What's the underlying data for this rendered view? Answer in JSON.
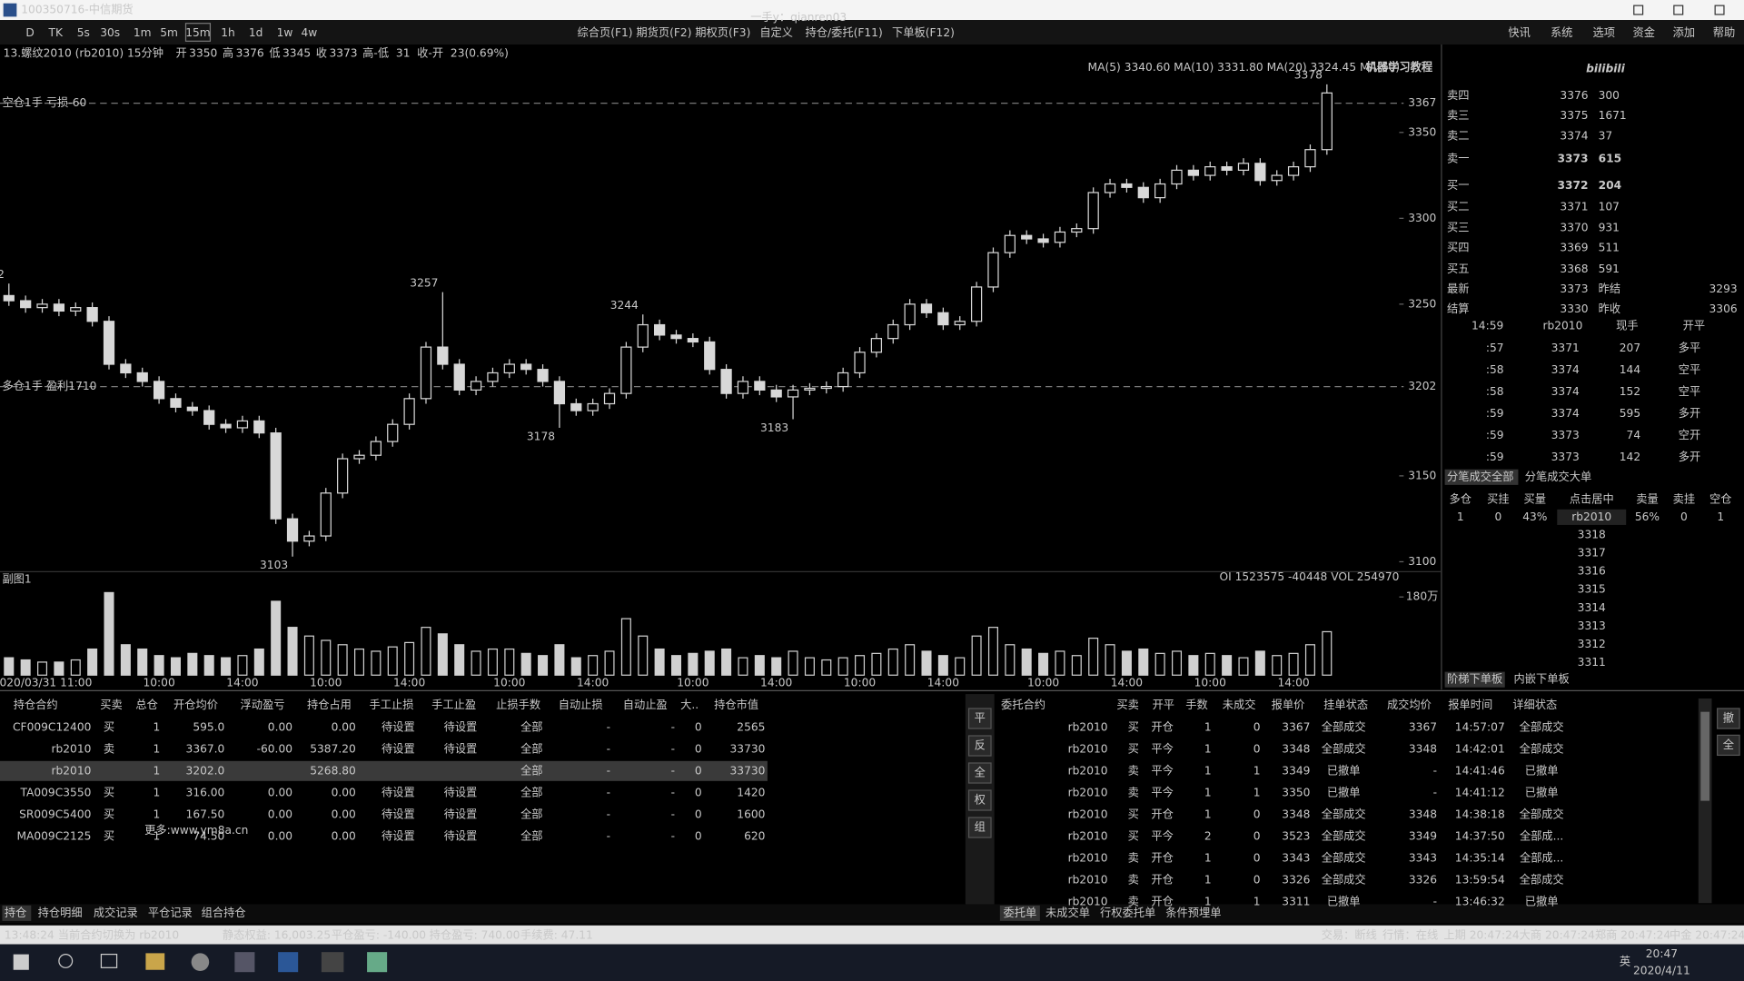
{
  "window": {
    "title": "100350716-中信期货",
    "watermark": "一手y：qianren03"
  },
  "toolbar": {
    "periods": [
      "D",
      "TK",
      "5s",
      "30s",
      "1m",
      "5m",
      "15m",
      "1h",
      "1d",
      "1w",
      "4w"
    ],
    "menus": [
      "综合页(F1)",
      "期货页(F2)",
      "期权页(F3)",
      "自定义",
      "持仓/委托(F11)",
      "下单板(F12)"
    ],
    "right_menus": [
      "快讯",
      "系统",
      "选项",
      "资金",
      "添加",
      "帮助"
    ]
  },
  "chart": {
    "symbol": "13.螺纹2010 (rb2010) 15分钟",
    "fields": [
      {
        "label": "开",
        "value": "3350"
      },
      {
        "label": "高",
        "value": "3376"
      },
      {
        "label": "低",
        "value": "3345"
      },
      {
        "label": "收",
        "value": "3373"
      },
      {
        "label": "高-低",
        "value": "31"
      },
      {
        "label": "收-开",
        "value": "23(0.69%)"
      }
    ],
    "ma_legend": "MA(5) 3340.60  MA(10) 3331.80  MA(20) 3324.45  MA(60)",
    "ylim": [
      3095.5,
      3391.5
    ],
    "yticks": [
      3350,
      3300,
      3250,
      3150,
      3100
    ],
    "position_lines": [
      {
        "label": "空仓1手 亏损-60",
        "price": 3367
      },
      {
        "label": "多仓1手 盈利1710",
        "price": 3202
      }
    ],
    "categories": [
      null,
      null,
      "2020/03/31 11:00",
      null,
      null,
      null,
      null,
      null,
      null,
      "10:00",
      null,
      null,
      null,
      null,
      "14:00",
      null,
      null,
      null,
      null,
      "10:00",
      null,
      null,
      null,
      null,
      "14:00",
      null,
      null,
      null,
      null,
      null,
      "10:00",
      null,
      null,
      null,
      null,
      "14:00",
      null,
      null,
      null,
      null,
      null,
      "10:00",
      null,
      null,
      null,
      null,
      "14:00",
      null,
      null,
      null,
      null,
      "10:00",
      null,
      null,
      null,
      null,
      "14:00",
      null,
      null,
      null,
      null,
      null,
      "10:00",
      null,
      null,
      null,
      null,
      "14:00",
      null,
      null,
      null,
      null,
      "10:00",
      null,
      null,
      null,
      null,
      "14:00",
      null,
      null
    ],
    "candles": {
      "open": [
        3255,
        3252,
        3248,
        3250,
        3246,
        3248,
        3240,
        3215,
        3210,
        3205,
        3195,
        3190,
        3188,
        3180,
        3178,
        3182,
        3175,
        3125,
        3112,
        3115,
        3140,
        3160,
        3162,
        3170,
        3180,
        3195,
        3225,
        3215,
        3200,
        3205,
        3210,
        3215,
        3212,
        3205,
        3192,
        3188,
        3192,
        3198,
        3225,
        3238,
        3232,
        3230,
        3228,
        3212,
        3198,
        3205,
        3200,
        3196,
        3200,
        3201,
        3202,
        3210,
        3222,
        3230,
        3238,
        3250,
        3245,
        3238,
        3240,
        3260,
        3280,
        3290,
        3288,
        3286,
        3292,
        3294,
        3315,
        3320,
        3318,
        3312,
        3320,
        3328,
        3325,
        3330,
        3328,
        3332,
        3322,
        3325,
        3330,
        3340
      ],
      "high": [
        3262,
        3255,
        3253,
        3253,
        3251,
        3251,
        3243,
        3218,
        3213,
        3208,
        3198,
        3193,
        3191,
        3183,
        3185,
        3185,
        3178,
        3128,
        3118,
        3143,
        3163,
        3165,
        3173,
        3183,
        3198,
        3228,
        3257,
        3218,
        3208,
        3213,
        3218,
        3218,
        3215,
        3208,
        3195,
        3195,
        3201,
        3228,
        3244,
        3241,
        3235,
        3233,
        3231,
        3215,
        3208,
        3208,
        3203,
        3203,
        3204,
        3205,
        3213,
        3225,
        3233,
        3241,
        3253,
        3253,
        3248,
        3243,
        3263,
        3283,
        3293,
        3293,
        3291,
        3295,
        3297,
        3318,
        3323,
        3323,
        3321,
        3323,
        3331,
        3331,
        3333,
        3333,
        3335,
        3335,
        3328,
        3333,
        3343,
        3378
      ],
      "low": [
        3249,
        3245,
        3245,
        3243,
        3243,
        3237,
        3212,
        3207,
        3202,
        3192,
        3187,
        3185,
        3177,
        3175,
        3175,
        3172,
        3122,
        3103,
        3109,
        3112,
        3137,
        3157,
        3159,
        3167,
        3177,
        3192,
        3212,
        3197,
        3197,
        3202,
        3207,
        3209,
        3202,
        3178,
        3185,
        3185,
        3189,
        3195,
        3222,
        3229,
        3227,
        3225,
        3209,
        3195,
        3195,
        3197,
        3193,
        3183,
        3197,
        3198,
        3199,
        3207,
        3219,
        3227,
        3235,
        3242,
        3235,
        3235,
        3237,
        3257,
        3277,
        3285,
        3283,
        3283,
        3289,
        3291,
        3312,
        3315,
        3309,
        3309,
        3317,
        3322,
        3322,
        3325,
        3325,
        3319,
        3319,
        3322,
        3327,
        3337
      ],
      "close": [
        3252,
        3248,
        3250,
        3246,
        3248,
        3240,
        3215,
        3210,
        3205,
        3195,
        3190,
        3188,
        3180,
        3178,
        3182,
        3175,
        3125,
        3112,
        3115,
        3140,
        3160,
        3162,
        3170,
        3180,
        3195,
        3225,
        3215,
        3200,
        3205,
        3210,
        3215,
        3212,
        3205,
        3192,
        3188,
        3192,
        3198,
        3225,
        3238,
        3232,
        3230,
        3228,
        3212,
        3198,
        3205,
        3200,
        3196,
        3200,
        3201,
        3202,
        3210,
        3222,
        3230,
        3238,
        3250,
        3245,
        3238,
        3240,
        3260,
        3280,
        3290,
        3288,
        3286,
        3292,
        3294,
        3315,
        3320,
        3318,
        3312,
        3320,
        3328,
        3325,
        3330,
        3328,
        3332,
        3322,
        3325,
        3330,
        3340,
        3373
      ]
    },
    "volume": {
      "title": "副图1",
      "info": "OI 1523575 -40448 VOL 254970",
      "vlim": [
        0,
        210
      ],
      "ticks": [
        {
          "value": 180,
          "label": "180万"
        }
      ],
      "values": [
        40,
        35,
        30,
        30,
        35,
        60,
        190,
        70,
        60,
        45,
        40,
        50,
        45,
        40,
        45,
        60,
        170,
        110,
        90,
        80,
        70,
        60,
        55,
        65,
        75,
        110,
        95,
        70,
        55,
        60,
        60,
        50,
        45,
        70,
        40,
        45,
        55,
        130,
        90,
        60,
        45,
        50,
        55,
        60,
        40,
        45,
        40,
        55,
        40,
        35,
        40,
        45,
        50,
        60,
        70,
        55,
        45,
        40,
        90,
        110,
        70,
        60,
        50,
        55,
        45,
        85,
        70,
        55,
        60,
        50,
        55,
        45,
        50,
        45,
        40,
        55,
        45,
        50,
        70,
        100
      ]
    }
  },
  "order_book": {
    "asks": [
      {
        "label": "卖四",
        "price": 3376,
        "volume": 300
      },
      {
        "label": "卖三",
        "price": 3375,
        "volume": 1671
      },
      {
        "label": "卖二",
        "price": 3374,
        "volume": 37
      },
      {
        "label": "卖一",
        "price": 3373,
        "volume": 615
      }
    ],
    "bids": [
      {
        "label": "买一",
        "price": 3372,
        "volume": 204
      },
      {
        "label": "买二",
        "price": 3371,
        "volume": 107
      },
      {
        "label": "买三",
        "price": 3370,
        "volume": 931
      },
      {
        "label": "买四",
        "price": 3369,
        "volume": 511
      },
      {
        "label": "买五",
        "price": 3368,
        "volume": 591
      }
    ],
    "stats": [
      {
        "label": "最新",
        "value": 3373,
        "label2": "昨结",
        "value2": 3293
      },
      {
        "label": "结算",
        "value": 3330,
        "label2": "昨收",
        "value2": 3306
      }
    ]
  },
  "ticks": {
    "header": [
      "14:59",
      "rb2010",
      "现手",
      "开平"
    ],
    "rows": [
      [
        ":57",
        "3371",
        "207",
        "多平"
      ],
      [
        ":58",
        "3374",
        "144",
        "空平"
      ],
      [
        ":58",
        "3374",
        "152",
        "空平"
      ],
      [
        ":59",
        "3374",
        "595",
        "多开"
      ],
      [
        ":59",
        "3373",
        "74",
        "空开"
      ],
      [
        ":59",
        "3373",
        "142",
        "多开"
      ]
    ],
    "tabs": [
      "分笔成交全部",
      "分笔成交大单"
    ]
  },
  "ladder": {
    "header": [
      "多仓",
      "买挂",
      "买量",
      "点击居中",
      "卖量",
      "卖挂",
      "空仓"
    ],
    "row": [
      "1",
      "0",
      "43%",
      "rb2010",
      "56%",
      "0",
      "1"
    ],
    "prices": [
      3318,
      3317,
      3316,
      3315,
      3314,
      3313,
      3312,
      3311
    ],
    "tabs": [
      "阶梯下单板",
      "内嵌下单板"
    ]
  },
  "positions": {
    "header": [
      "持仓合约",
      "买卖",
      "总仓",
      "开仓均价",
      "浮动盈亏",
      "持仓占用",
      "手工止损",
      "手工止盈",
      "止损手数",
      "自动止损",
      "自动止盈",
      "大..",
      "持仓市值"
    ],
    "rows": [
      [
        "CF009C12400",
        "买",
        "1",
        "595.0",
        "0.00",
        "0.00",
        "待设置",
        "待设置",
        "全部",
        "-",
        "-",
        "0",
        "2565"
      ],
      [
        "rb2010",
        "卖",
        "1",
        "3367.0",
        "-60.00",
        "5387.20",
        "待设置",
        "待设置",
        "全部",
        "-",
        "-",
        "0",
        "33730"
      ],
      [
        "rb2010",
        null,
        "1",
        "3202.0",
        null,
        "5268.80",
        null,
        null,
        "全部",
        "-",
        "-",
        "0",
        "33730"
      ],
      [
        "TA009C3550",
        "买",
        "1",
        "316.00",
        "0.00",
        "0.00",
        "待设置",
        "待设置",
        "全部",
        "-",
        "-",
        "0",
        "1420"
      ],
      [
        "SR009C5400",
        "买",
        "1",
        "167.50",
        "0.00",
        "0.00",
        "待设置",
        "待设置",
        "全部",
        "-",
        "-",
        "0",
        "1600"
      ],
      [
        "MA009C2125",
        "买",
        "1",
        "74.50",
        "0.00",
        "0.00",
        "待设置",
        "待设置",
        "全部",
        "-",
        "-",
        "0",
        "620"
      ]
    ],
    "tabs": [
      "持仓",
      "持仓明细",
      "成交记录",
      "平仓记录",
      "组合持仓"
    ],
    "side_buttons": [
      "平",
      "反",
      "全",
      "权",
      "组"
    ]
  },
  "orders": {
    "header": [
      "委托合约",
      "买卖",
      "开平",
      "手数",
      "未成交",
      "报单价",
      "挂单状态",
      "成交均价",
      "报单时间",
      "详细状态"
    ],
    "rows": [
      [
        "rb2010",
        "买",
        "开仓",
        "1",
        "0",
        "3367",
        "全部成交",
        "3367",
        "14:57:07",
        "全部成交"
      ],
      [
        "rb2010",
        "买",
        "平今",
        "1",
        "0",
        "3348",
        "全部成交",
        "3348",
        "14:42:01",
        "全部成交"
      ],
      [
        "rb2010",
        "卖",
        "平今",
        "1",
        "1",
        "3349",
        "已撤单",
        "-",
        "14:41:46",
        "已撤单"
      ],
      [
        "rb2010",
        "卖",
        "平今",
        "1",
        "1",
        "3350",
        "已撤单",
        "-",
        "14:41:12",
        "已撤单"
      ],
      [
        "rb2010",
        "买",
        "开仓",
        "1",
        "0",
        "3348",
        "全部成交",
        "3348",
        "14:38:18",
        "全部成交"
      ],
      [
        "rb2010",
        "买",
        "平今",
        "2",
        "0",
        "3523",
        "全部成交",
        "3349",
        "14:37:50",
        "全部成..."
      ],
      [
        "rb2010",
        "卖",
        "开仓",
        "1",
        "0",
        "3343",
        "全部成交",
        "3343",
        "14:35:14",
        "全部成..."
      ],
      [
        "rb2010",
        "卖",
        "开仓",
        "1",
        "0",
        "3326",
        "全部成交",
        "3326",
        "13:59:54",
        "全部成交"
      ],
      [
        "rb2010",
        "卖",
        "开仓",
        "1",
        "1",
        "3311",
        "已撤单",
        "-",
        "13:46:32",
        "已撤单"
      ]
    ],
    "tabs": [
      "委托单",
      "未成交单",
      "行权委托单",
      "条件预埋单"
    ],
    "side_buttons": [
      "撤",
      "全"
    ]
  },
  "status": {
    "left": [
      "13:48:24 当前合约切换为 rb2010",
      "静态权益: 16,003.25",
      "平仓盈亏: -140.00",
      "持仓盈亏: 740.00",
      "手续费: 47.11"
    ],
    "right": [
      "交易：断线",
      "行情：在线",
      "上期 20:47:24",
      "大商 20:47:24",
      "郑商 20:47:24",
      "中金 20:47:24"
    ]
  },
  "taskbar": {
    "lang": "英",
    "time": "20:47",
    "date": "2020/4/11"
  },
  "overlay": {
    "watermark": "机器学习教程",
    "logo": "bilibili",
    "site": "更多:www.ym8a.cn"
  }
}
